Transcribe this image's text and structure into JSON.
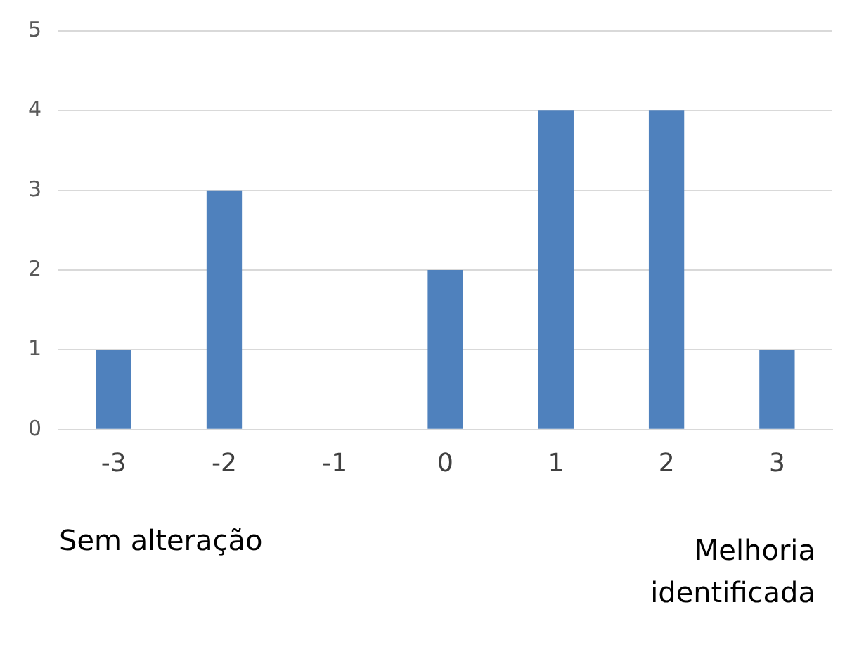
{
  "chart_data": {
    "type": "bar",
    "categories": [
      "-3",
      "-2",
      "-1",
      "0",
      "1",
      "2",
      "3"
    ],
    "values": [
      1,
      3,
      0,
      2,
      4,
      4,
      1
    ],
    "color": "#4f81bd",
    "ylim": [
      0,
      5
    ],
    "yticks": [
      0,
      1,
      2,
      3,
      4,
      5
    ],
    "grid": "y",
    "legend": false,
    "annotations": [
      "Sem alteração",
      "Melhoria identificada"
    ]
  }
}
